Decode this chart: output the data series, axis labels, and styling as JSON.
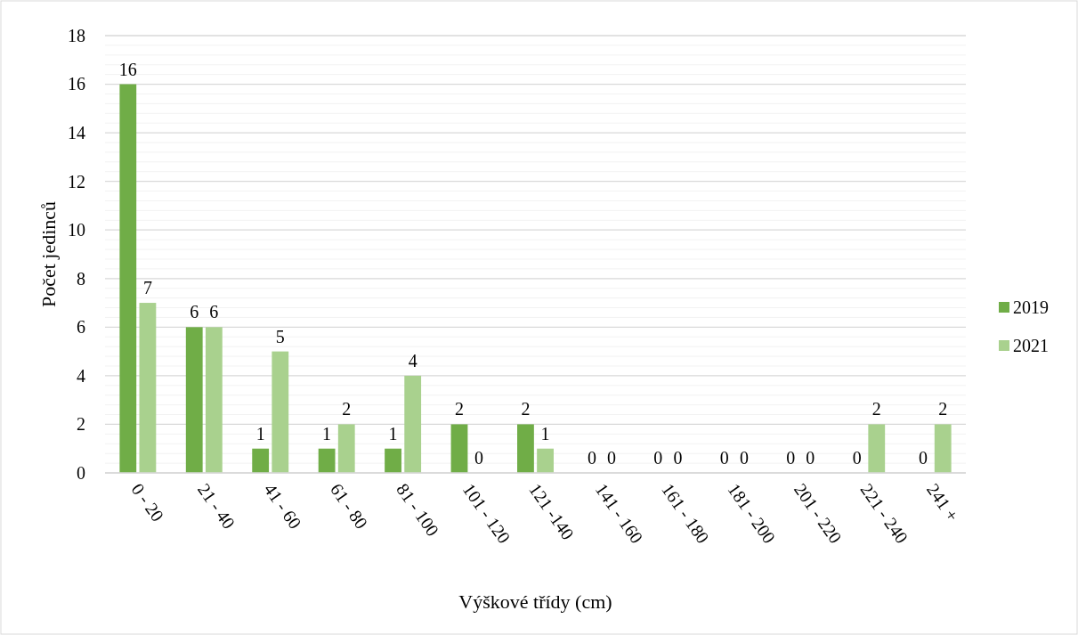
{
  "chart_data": {
    "type": "bar",
    "xlabel": "Výškové třídy (cm)",
    "ylabel": "Počet jedinců",
    "categories": [
      "0 - 20",
      "21 - 40",
      "41 - 60",
      "61 - 80",
      "81 - 100",
      "101 - 120",
      "121 -140",
      "141 - 160",
      "161 - 180",
      "181 - 200",
      "201 - 220",
      "221 - 240",
      "241 +"
    ],
    "series": [
      {
        "name": "2019",
        "color": "#70ad47",
        "values": [
          16,
          6,
          1,
          1,
          1,
          2,
          2,
          0,
          0,
          0,
          0,
          0,
          0
        ]
      },
      {
        "name": "2021",
        "color": "#a9d18e",
        "values": [
          7,
          6,
          5,
          2,
          4,
          0,
          1,
          0,
          0,
          0,
          0,
          2,
          2
        ]
      }
    ],
    "ylim": [
      0,
      18
    ],
    "yticks": [
      0,
      {
        "value": 0.4,
        "label": null
      },
      {
        "value": 0.8,
        "label": null
      },
      {
        "value": 1.2,
        "label": null
      },
      {
        "value": 1.6,
        "label": null
      },
      2,
      {
        "value": 2.4,
        "label": null
      },
      {
        "value": 2.8,
        "label": null
      },
      {
        "value": 3.2,
        "label": null
      },
      {
        "value": 3.6,
        "label": null
      },
      4,
      {
        "value": 4.4,
        "label": null
      },
      {
        "value": 4.8,
        "label": null
      },
      {
        "value": 5.2,
        "label": null
      },
      {
        "value": 5.6,
        "label": null
      },
      6,
      {
        "value": 6.4,
        "label": null
      },
      {
        "value": 6.8,
        "label": null
      },
      {
        "value": 7.2,
        "label": null
      },
      {
        "value": 7.6,
        "label": null
      },
      8,
      {
        "value": 8.4,
        "label": null
      },
      {
        "value": 8.8,
        "label": null
      },
      {
        "value": 9.2,
        "label": null
      },
      {
        "value": 9.6,
        "label": null
      },
      10,
      {
        "value": 10.4,
        "label": null
      },
      {
        "value": 10.8,
        "label": null
      },
      {
        "value": 11.2,
        "label": null
      },
      {
        "value": 11.6,
        "label": null
      },
      12,
      {
        "value": 12.4,
        "label": null
      },
      {
        "value": 12.8,
        "label": null
      },
      {
        "value": 13.2,
        "label": null
      },
      {
        "value": 13.6,
        "label": null
      },
      14,
      {
        "value": 14.4,
        "label": null
      },
      {
        "value": 14.8,
        "label": null
      },
      {
        "value": 15.2,
        "label": null
      },
      {
        "value": 15.6,
        "label": null
      },
      16,
      {
        "value": 16.4,
        "label": null
      },
      {
        "value": 16.8,
        "label": null
      },
      {
        "value": 17.2,
        "label": null
      },
      {
        "value": 17.6,
        "label": null
      },
      18
    ],
    "grid": "y",
    "legend": "right",
    "data_labels": true
  }
}
